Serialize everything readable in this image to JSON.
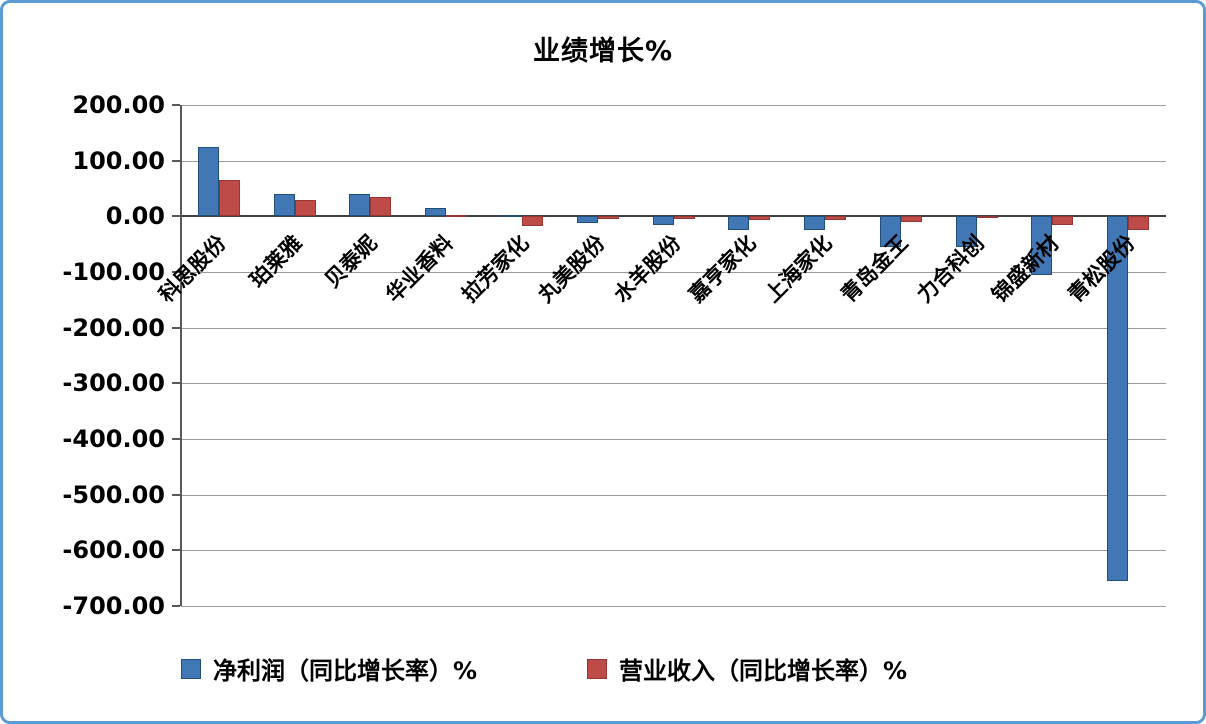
{
  "chart_data": {
    "type": "bar",
    "title": "业绩增长%",
    "categories": [
      "科思股份",
      "珀莱雅",
      "贝泰妮",
      "华业香料",
      "拉芳家化",
      "丸美股份",
      "水羊股份",
      "嘉亨家化",
      "上海家化",
      "青岛金王",
      "力合科创",
      "锦盛新材",
      "青松股份"
    ],
    "series": [
      {
        "name": "净利润（同比增长率）%",
        "color": "#4177b4",
        "border_color": "#1f4e79",
        "values": [
          125,
          40,
          40,
          15,
          3,
          -12,
          -15,
          -25,
          -25,
          -55,
          -55,
          -105,
          -655
        ]
      },
      {
        "name": "营业收入（同比增长率）%",
        "color": "#be4b48",
        "border_color": "#943634",
        "values": [
          65,
          30,
          35,
          2,
          -18,
          -4,
          -4,
          -6,
          -6,
          -10,
          -3,
          -15,
          -25
        ]
      }
    ],
    "ylim": [
      -700,
      200
    ],
    "ytick_step": 100,
    "y_tick_labels": [
      "200.00",
      "100.00",
      "0.00",
      "-100.00",
      "-200.00",
      "-300.00",
      "-400.00",
      "-500.00",
      "-600.00",
      "-700.00"
    ],
    "grid": true,
    "legend_position": "bottom",
    "xlabel": "",
    "ylabel": ""
  }
}
